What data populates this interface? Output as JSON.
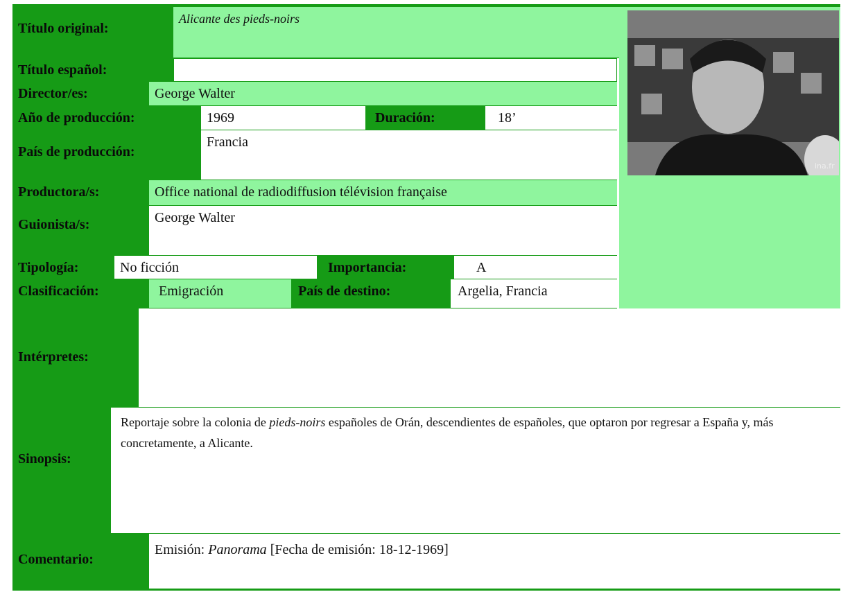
{
  "titulo_original": {
    "label": "Título original:",
    "value": "Alicante des pieds-noirs"
  },
  "titulo_espanol": {
    "label": "Título español:"
  },
  "director": {
    "label": "Director/es:",
    "value": "George Walter"
  },
  "ano": {
    "label": "Año de producción:",
    "value": "1969"
  },
  "duracion": {
    "label": "Duración:",
    "value": "18’"
  },
  "pais_produccion": {
    "label": "País de producción:",
    "value": "Francia"
  },
  "productora": {
    "label": "Productora/s:",
    "value": "Office national de radiodiffusion télévision française"
  },
  "guionista": {
    "label": "Guionista/s:",
    "value": "George Walter"
  },
  "tipologia": {
    "label": "Tipología:",
    "value": "No ficción"
  },
  "importancia": {
    "label": "Importancia:",
    "value": "A"
  },
  "clasificacion": {
    "label": "Clasificación:",
    "value": "Emigración"
  },
  "pais_destino": {
    "label": "País de destino:",
    "value": "Argelia, Francia"
  },
  "interpretes": {
    "label": "Intérpretes:"
  },
  "sinopsis": {
    "label": "Sinopsis:",
    "before": "Reportaje sobre la colonia de ",
    "italic": "pieds-noirs",
    "after": " españoles de Orán, descendientes de españoles, que optaron por regresar a España y, más concretamente, a Alicante."
  },
  "comentario": {
    "label": "Comentario:",
    "before": "Emisión: ",
    "italic": "Panorama",
    "after": " [Fecha de emisión: 18-12-1969]"
  },
  "image": {
    "watermark": "ina.fr"
  }
}
